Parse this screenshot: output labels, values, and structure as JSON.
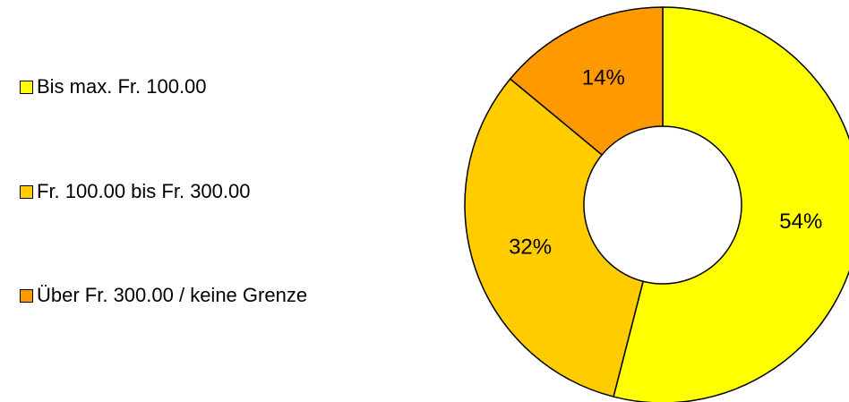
{
  "chart_data": {
    "type": "donut",
    "categories": [
      "Bis max. Fr. 100.00",
      "Fr. 100.00 bis Fr. 300.00",
      "Über Fr. 300.00 / keine Grenze"
    ],
    "values": [
      54,
      32,
      14
    ],
    "value_labels": [
      "54%",
      "32%",
      "14%"
    ],
    "colors": [
      "#ffff00",
      "#ffcc00",
      "#ff9900"
    ],
    "legend": "left"
  }
}
